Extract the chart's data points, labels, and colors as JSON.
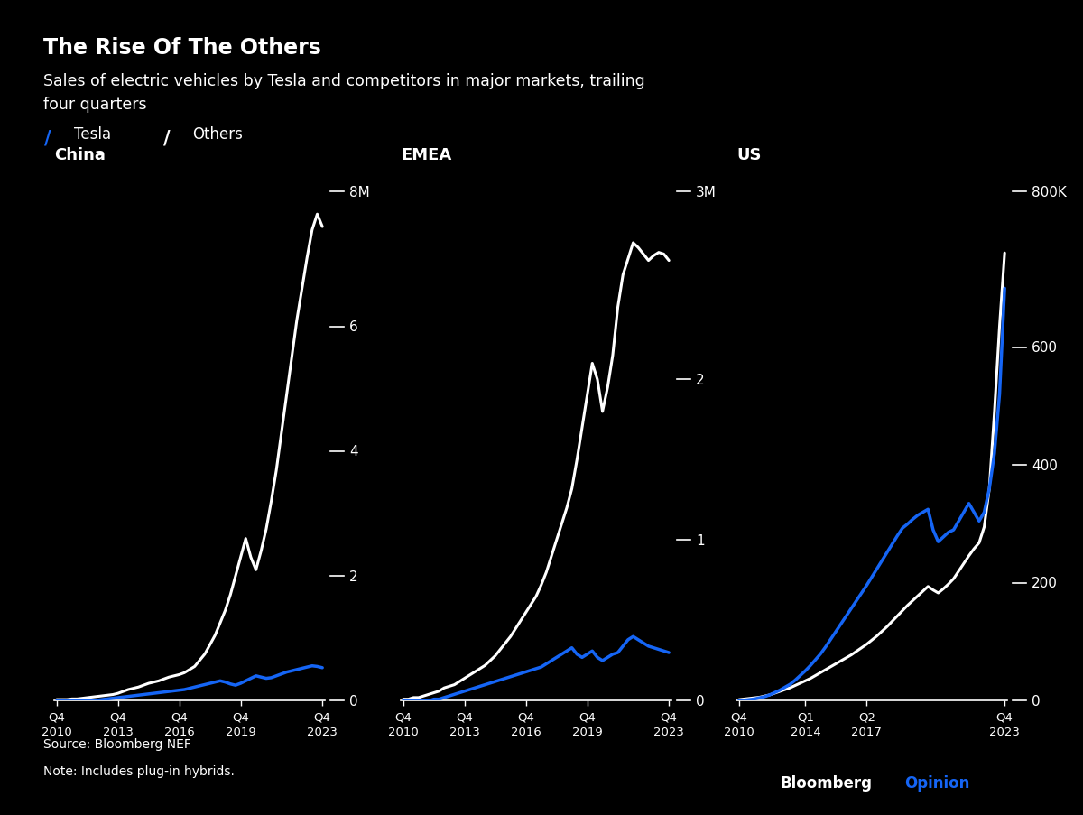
{
  "title": "The Rise Of The Others",
  "subtitle": "Sales of electric vehicles by Tesla and competitors in major markets, trailing\nfour quarters",
  "source": "Source: Bloomberg NEF",
  "note": "Note: Includes plug-in hybrids.",
  "background_color": "#000000",
  "text_color": "#ffffff",
  "tesla_color": "#1565f5",
  "others_color": "#ffffff",
  "panels": [
    {
      "title": "China",
      "yticks": [
        0,
        2,
        4,
        6
      ],
      "ytick_labels": [
        "0",
        "2",
        "4",
        "6"
      ],
      "ymax_label": "8M",
      "ymax": 8.5,
      "xtick_labels": [
        "Q4\n2010",
        "Q4\n2013",
        "Q4\n2016",
        "Q4\n2019",
        "Q4\n2023"
      ],
      "xtick_positions": [
        0,
        12,
        24,
        36,
        52
      ]
    },
    {
      "title": "EMEA",
      "yticks": [
        0,
        1,
        2
      ],
      "ytick_labels": [
        "0",
        "1",
        "2"
      ],
      "ymax_label": "3M",
      "ymax": 3.3,
      "xtick_labels": [
        "Q4\n2010",
        "Q4\n2013",
        "Q4\n2016",
        "Q4\n2019",
        "Q4\n2023"
      ],
      "xtick_positions": [
        0,
        12,
        24,
        36,
        52
      ]
    },
    {
      "title": "US",
      "yticks": [
        0,
        200,
        400,
        600
      ],
      "ytick_labels": [
        "0",
        "200",
        "400",
        "600"
      ],
      "ymax_label": "800K",
      "ymax": 900,
      "xtick_labels": [
        "Q4\n2010",
        "Q1\n2014",
        "Q2\n2017",
        "Q4\n2023"
      ],
      "xtick_positions": [
        0,
        13,
        25,
        52
      ]
    }
  ],
  "china_others": [
    0.02,
    0.02,
    0.02,
    0.03,
    0.03,
    0.04,
    0.05,
    0.06,
    0.07,
    0.08,
    0.09,
    0.1,
    0.12,
    0.15,
    0.18,
    0.2,
    0.22,
    0.25,
    0.28,
    0.3,
    0.32,
    0.35,
    0.38,
    0.4,
    0.42,
    0.45,
    0.5,
    0.55,
    0.65,
    0.75,
    0.9,
    1.05,
    1.25,
    1.45,
    1.7,
    2.0,
    2.3,
    2.6,
    2.3,
    2.1,
    2.4,
    2.75,
    3.2,
    3.7,
    4.3,
    4.9,
    5.5,
    6.1,
    6.6,
    7.1,
    7.55,
    7.8,
    7.6
  ],
  "china_tesla": [
    0.0,
    0.0,
    0.0,
    0.0,
    0.0,
    0.0,
    0.0,
    0.0,
    0.01,
    0.02,
    0.03,
    0.04,
    0.05,
    0.06,
    0.07,
    0.08,
    0.09,
    0.1,
    0.11,
    0.12,
    0.13,
    0.14,
    0.15,
    0.16,
    0.17,
    0.18,
    0.2,
    0.22,
    0.24,
    0.26,
    0.28,
    0.3,
    0.32,
    0.3,
    0.27,
    0.25,
    0.28,
    0.32,
    0.36,
    0.4,
    0.38,
    0.36,
    0.37,
    0.4,
    0.43,
    0.46,
    0.48,
    0.5,
    0.52,
    0.54,
    0.56,
    0.55,
    0.53
  ],
  "emea_others": [
    0.01,
    0.01,
    0.02,
    0.02,
    0.03,
    0.04,
    0.05,
    0.06,
    0.08,
    0.09,
    0.1,
    0.12,
    0.14,
    0.16,
    0.18,
    0.2,
    0.22,
    0.25,
    0.28,
    0.32,
    0.36,
    0.4,
    0.45,
    0.5,
    0.55,
    0.6,
    0.65,
    0.72,
    0.8,
    0.9,
    1.0,
    1.1,
    1.2,
    1.32,
    1.5,
    1.7,
    1.9,
    2.1,
    2.0,
    1.8,
    1.95,
    2.15,
    2.45,
    2.65,
    2.75,
    2.85,
    2.82,
    2.78,
    2.74,
    2.77,
    2.79,
    2.78,
    2.74
  ],
  "emea_tesla": [
    0.0,
    0.0,
    0.0,
    0.0,
    0.0,
    0.0,
    0.01,
    0.01,
    0.02,
    0.03,
    0.04,
    0.05,
    0.06,
    0.07,
    0.08,
    0.09,
    0.1,
    0.11,
    0.12,
    0.13,
    0.14,
    0.15,
    0.16,
    0.17,
    0.18,
    0.19,
    0.2,
    0.21,
    0.23,
    0.25,
    0.27,
    0.29,
    0.31,
    0.33,
    0.29,
    0.27,
    0.29,
    0.31,
    0.27,
    0.25,
    0.27,
    0.29,
    0.3,
    0.34,
    0.38,
    0.4,
    0.38,
    0.36,
    0.34,
    0.33,
    0.32,
    0.31,
    0.3
  ],
  "us_others": [
    2,
    3,
    4,
    5,
    6,
    8,
    10,
    13,
    16,
    19,
    22,
    26,
    30,
    34,
    38,
    43,
    48,
    53,
    58,
    63,
    68,
    73,
    78,
    84,
    90,
    96,
    103,
    110,
    118,
    126,
    135,
    144,
    153,
    162,
    170,
    178,
    186,
    194,
    188,
    183,
    190,
    198,
    207,
    220,
    233,
    246,
    258,
    268,
    295,
    360,
    490,
    635,
    760
  ],
  "us_tesla": [
    0.5,
    1,
    2,
    3,
    5,
    7,
    10,
    14,
    18,
    23,
    28,
    35,
    43,
    51,
    60,
    70,
    80,
    92,
    105,
    118,
    131,
    144,
    157,
    170,
    183,
    196,
    210,
    224,
    238,
    252,
    266,
    280,
    293,
    300,
    308,
    315,
    320,
    325,
    290,
    270,
    278,
    286,
    290,
    305,
    320,
    335,
    320,
    305,
    320,
    360,
    420,
    520,
    700
  ]
}
